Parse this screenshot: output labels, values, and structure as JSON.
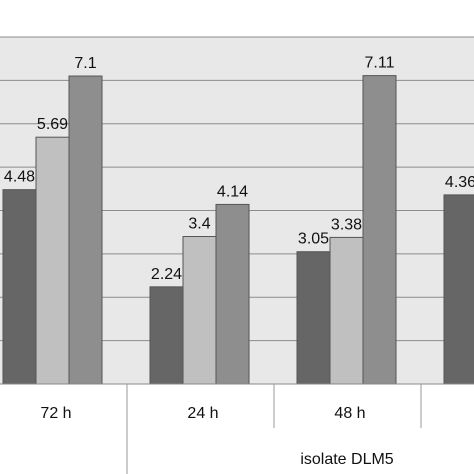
{
  "chart_data": {
    "type": "bar",
    "categories": [
      "72 h",
      "24 h",
      "48 h",
      ""
    ],
    "group_labels": [
      "isolate DLM5"
    ],
    "series": [
      {
        "values": [
          4.48,
          2.24,
          3.05,
          4.36
        ],
        "color": "#666666"
      },
      {
        "values": [
          5.69,
          3.4,
          3.38,
          null
        ],
        "color": "#c0c0c0"
      },
      {
        "values": [
          7.1,
          4.14,
          7.11,
          null
        ],
        "color": "#8e8e8e"
      }
    ],
    "value_labels": [
      [
        "4.48",
        "2.24",
        "3.05",
        "4.36"
      ],
      [
        "5.69",
        "3.4",
        "3.38",
        ""
      ],
      [
        "7.1",
        "4.14",
        "7.11",
        ""
      ]
    ],
    "ylim": [
      0,
      8
    ],
    "grid": true,
    "colors": {
      "plot_background": "#e8e8e8",
      "gridline": "#8c8c8c",
      "bar_outline": "#555555"
    }
  }
}
